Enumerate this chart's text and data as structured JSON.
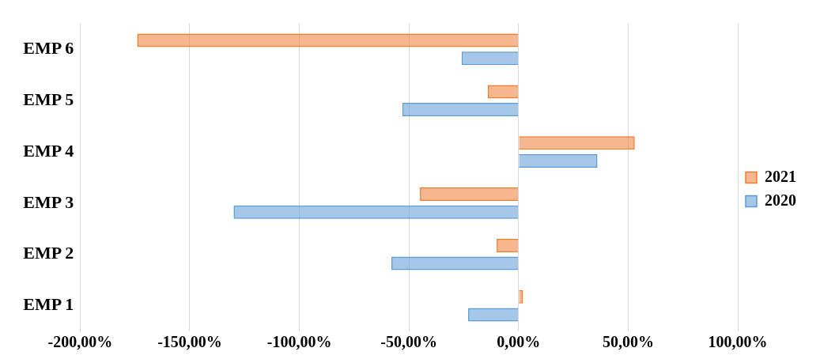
{
  "chart_data": {
    "type": "bar",
    "orientation": "horizontal",
    "categories": [
      "EMP 6",
      "EMP 5",
      "EMP 4",
      "EMP 3",
      "EMP 2",
      "EMP 1"
    ],
    "series": [
      {
        "name": "2021",
        "color": "#ed7d31",
        "values": [
          -174,
          -14,
          53,
          -45,
          -10,
          2
        ]
      },
      {
        "name": "2020",
        "color": "#5b9bd5",
        "values": [
          -26,
          -53,
          36,
          -130,
          -58,
          -23
        ]
      }
    ],
    "xlim": [
      -200,
      100
    ],
    "xticks": [
      {
        "value": -200,
        "label": "-200,00%"
      },
      {
        "value": -150,
        "label": "-150,00%"
      },
      {
        "value": -100,
        "label": "-100,00%"
      },
      {
        "value": -50,
        "label": "-50,00%"
      },
      {
        "value": 0,
        "label": "0,00%"
      },
      {
        "value": 50,
        "label": "50,00%"
      },
      {
        "value": 100,
        "label": "100,00%"
      }
    ],
    "grid": "x",
    "legend": "right"
  }
}
